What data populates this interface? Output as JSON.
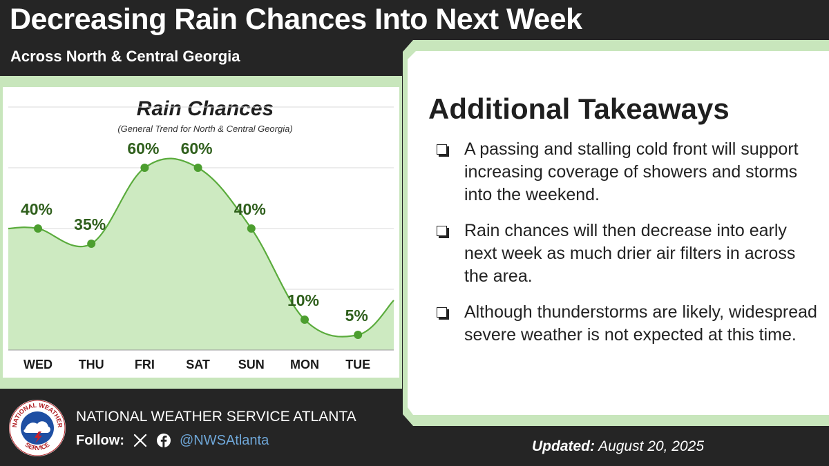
{
  "header": {
    "title": "Decreasing Rain Chances Into Next Week",
    "subtitle": "Across North & Central Georgia"
  },
  "chart_data": {
    "type": "area",
    "title": "Rain Chances",
    "subtitle": "(General Trend for North & Central Georgia)",
    "categories": [
      "WED",
      "THU",
      "FRI",
      "SAT",
      "SUN",
      "MON",
      "TUE"
    ],
    "values": [
      40,
      35,
      60,
      60,
      40,
      10,
      5
    ],
    "value_labels": [
      "40%",
      "35%",
      "60%",
      "60%",
      "40%",
      "10%",
      "5%"
    ],
    "ylim": [
      0,
      80
    ],
    "grid": true,
    "colors": {
      "line": "#5aab3c",
      "fill": "#cdeac1",
      "marker": "#4c9e2f",
      "label": "#2f5f1c"
    }
  },
  "takeaways": {
    "title": "Additional Takeaways",
    "items": [
      "A passing and stalling cold front will support increasing coverage of showers and storms into the weekend.",
      "Rain chances will then decrease into early next week as much drier air filters in across the area.",
      "Although thunderstorms are likely, widespread severe weather is not expected at this time."
    ]
  },
  "footer": {
    "org": "NATIONAL WEATHER SERVICE ATLANTA",
    "follow_label": "Follow:",
    "handle": "@NWSAtlanta",
    "updated_label": "Updated:",
    "updated_date": "August 20, 2025",
    "logo_text_top": "NATIONAL WEATHER",
    "logo_text_bottom": "SERVICE"
  },
  "colors": {
    "background": "#252525",
    "accent_green": "#c8e6bc",
    "panel": "#ffffff",
    "handle": "#6fa7d8"
  }
}
